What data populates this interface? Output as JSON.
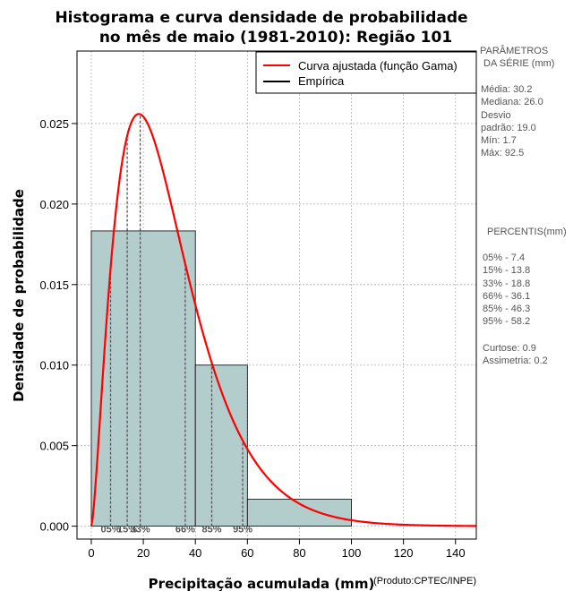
{
  "chart_data": {
    "type": "bar",
    "title_line1": "Histograma e curva densidade de probabilidade",
    "title_line2": "no mês de maio (1981-2010): Região 101",
    "xlabel": "Precipitação acumulada (mm)",
    "ylabel": "Densidade de probabilidade",
    "credit": "(Produto:CPTEC/INPE)",
    "xlim": [
      -5.5,
      148
    ],
    "ylim": [
      -0.0008,
      0.0295
    ],
    "xticks": [
      0,
      20,
      40,
      60,
      80,
      100,
      120,
      140
    ],
    "yticks": [
      0.0,
      0.005,
      0.01,
      0.015,
      0.02,
      0.025
    ],
    "ytick_labels": [
      "0.000",
      "0.005",
      "0.010",
      "0.015",
      "0.020",
      "0.025"
    ],
    "histogram": [
      {
        "x0": 0,
        "x1": 40,
        "density": 0.01833
      },
      {
        "x0": 40,
        "x1": 60,
        "density": 0.01
      },
      {
        "x0": 60,
        "x1": 100,
        "density": 0.00167
      }
    ],
    "gamma_fit": {
      "mean": 30.2,
      "sd": 19.0
    },
    "percentile_lines": [
      {
        "label": "05%",
        "x": 7.4
      },
      {
        "label": "15%",
        "x": 13.8
      },
      {
        "label": "33%",
        "x": 18.8
      },
      {
        "label": "66%",
        "x": 36.1
      },
      {
        "label": "85%",
        "x": 46.3
      },
      {
        "label": "95%",
        "x": 58.2
      }
    ],
    "legend": {
      "placement": "top-right",
      "entries": [
        {
          "label": "Curva ajustada (função Gama)",
          "color": "#ff0000"
        },
        {
          "label": "Empírica",
          "color": "#000000"
        }
      ]
    },
    "grid": true,
    "colors": {
      "bars": "#b3cccc",
      "curve": "#ff0000",
      "percentile": "#555555"
    }
  },
  "stats": {
    "header_line1": "PARÂMETROS",
    "header_line2": "DA SÉRIE (mm)",
    "lines": [
      "Média:  30.2",
      "Mediana:  26.0",
      "Desvio",
      "padrão:  19.0",
      "Mín:  1.7",
      "Máx:  92.5"
    ]
  },
  "percentis": {
    "header": "PERCENTIS(mm)",
    "lines": [
      "05% -  7.4",
      "15% -  13.8",
      "33% -  18.8",
      "66% -  36.1",
      "85% -  46.3",
      "95% -  58.2"
    ],
    "extra": [
      "Curtose:  0.9",
      "Assimetria:  0.2"
    ]
  }
}
